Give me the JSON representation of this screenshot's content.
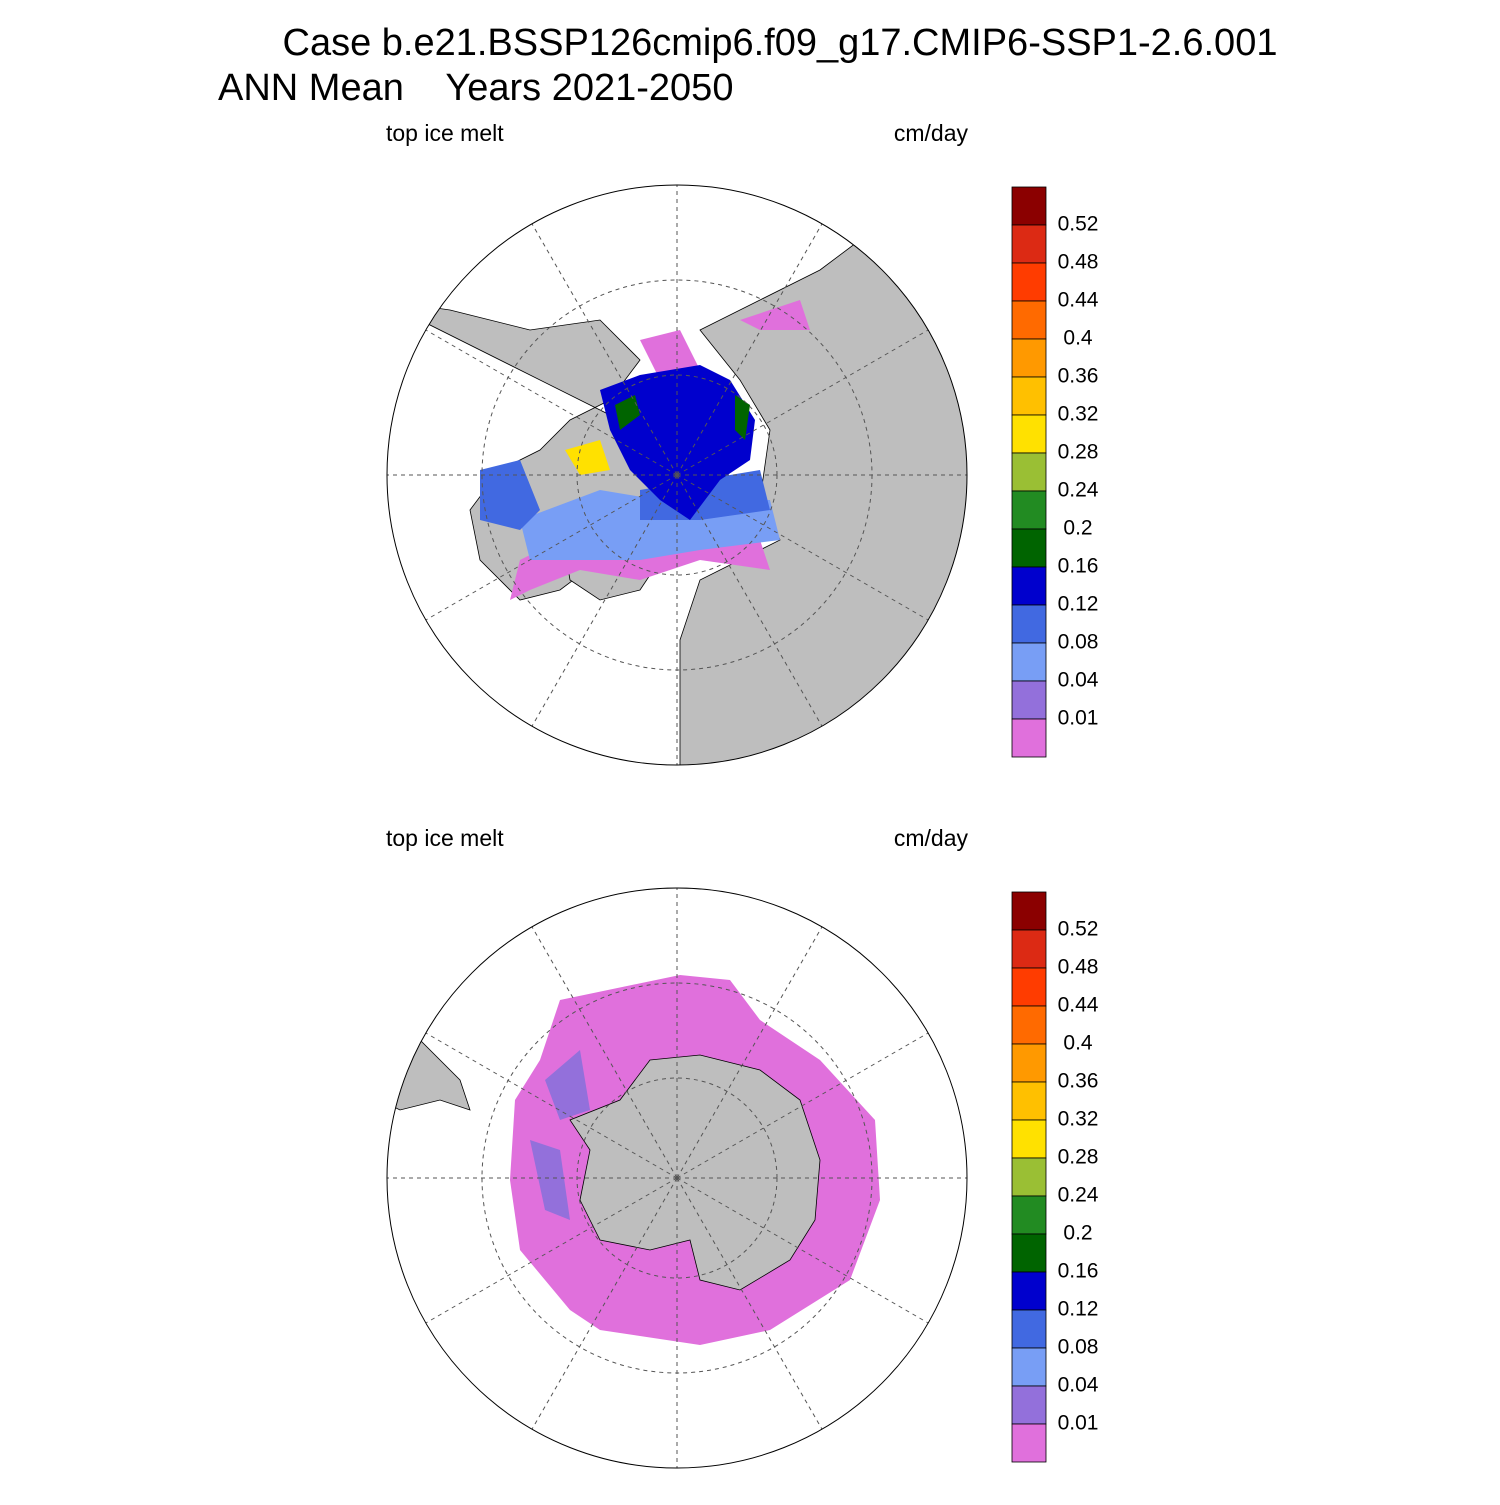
{
  "header": {
    "title": "Case b.e21.BSSP126cmip6.f09_g17.CMIP6-SSP1-2.6.001",
    "subtitle": "ANN Mean    Years 2021-2050"
  },
  "panels": [
    {
      "left_label": "top ice melt",
      "right_label": "cm/day",
      "colorbar": {
        "labels": [
          "0.52",
          "0.48",
          "0.44",
          "0.4",
          "0.36",
          "0.32",
          "0.28",
          "0.24",
          "0.2",
          "0.16",
          "0.12",
          "0.08",
          "0.04",
          "0.01"
        ],
        "colors": [
          "#8b0000",
          "#dc2a14",
          "#ff3c00",
          "#ff6a00",
          "#ff9900",
          "#ffc000",
          "#ffe100",
          "#9abf34",
          "#228b22",
          "#006400",
          "#0000cd",
          "#4169e1",
          "#789ef5",
          "#9370db",
          "#e070dc"
        ]
      }
    },
    {
      "left_label": "top ice melt",
      "right_label": "cm/day",
      "colorbar": {
        "labels": [
          "0.52",
          "0.48",
          "0.44",
          "0.4",
          "0.36",
          "0.32",
          "0.28",
          "0.24",
          "0.2",
          "0.16",
          "0.12",
          "0.08",
          "0.04",
          "0.01"
        ],
        "colors": [
          "#8b0000",
          "#dc2a14",
          "#ff3c00",
          "#ff6a00",
          "#ff9900",
          "#ffc000",
          "#ffe100",
          "#9abf34",
          "#228b22",
          "#006400",
          "#0000cd",
          "#4169e1",
          "#789ef5",
          "#9370db",
          "#e070dc"
        ]
      }
    }
  ]
}
